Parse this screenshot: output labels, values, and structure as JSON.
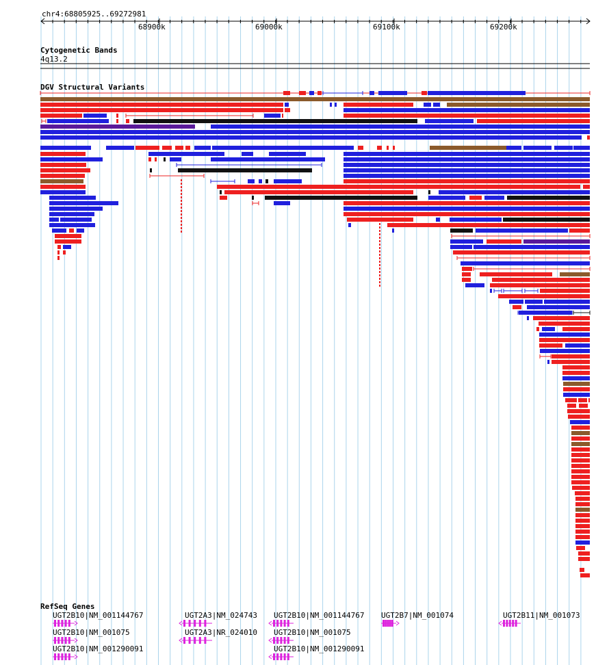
{
  "locus": "chr4:68805925..69272981",
  "ruler": {
    "ticks": [
      {
        "label": "68900k",
        "bp": 68900000
      },
      {
        "label": "69000k",
        "bp": 69000000
      },
      {
        "label": "69100k",
        "bp": 69100000
      },
      {
        "label": "69200k",
        "bp": 69200000
      }
    ]
  },
  "cytoband_track": {
    "title": "Cytogenetic Bands",
    "band": "4q13.2"
  },
  "dgv_track": {
    "title": "DGV Structural Variants"
  },
  "refseq_track": {
    "title": "RefSeq Genes",
    "genes": [
      {
        "label": "UGT2B10|NM_001144767"
      },
      {
        "label": "UGT2B10|NM_001075"
      },
      {
        "label": "UGT2B10|NM_001290091"
      },
      {
        "label": "UGT2A3|NM_024743"
      },
      {
        "label": "UGT2A3|NR_024010"
      },
      {
        "label": "UGT2B10|NM_001144767"
      },
      {
        "label": "UGT2B10|NM_001075"
      },
      {
        "label": "UGT2B10|NM_001290091"
      },
      {
        "label": "UGT2B7|NM_001074"
      },
      {
        "label": "UGT2B11|NM_001073"
      }
    ]
  },
  "colors": {
    "grid": "#aad4ec",
    "loss": "#ee2020",
    "gain": "#2020dd",
    "inversion": "#8b5a2b",
    "complex": "#111111",
    "other": "#5a1a9a",
    "gene": "#dd22dd"
  }
}
